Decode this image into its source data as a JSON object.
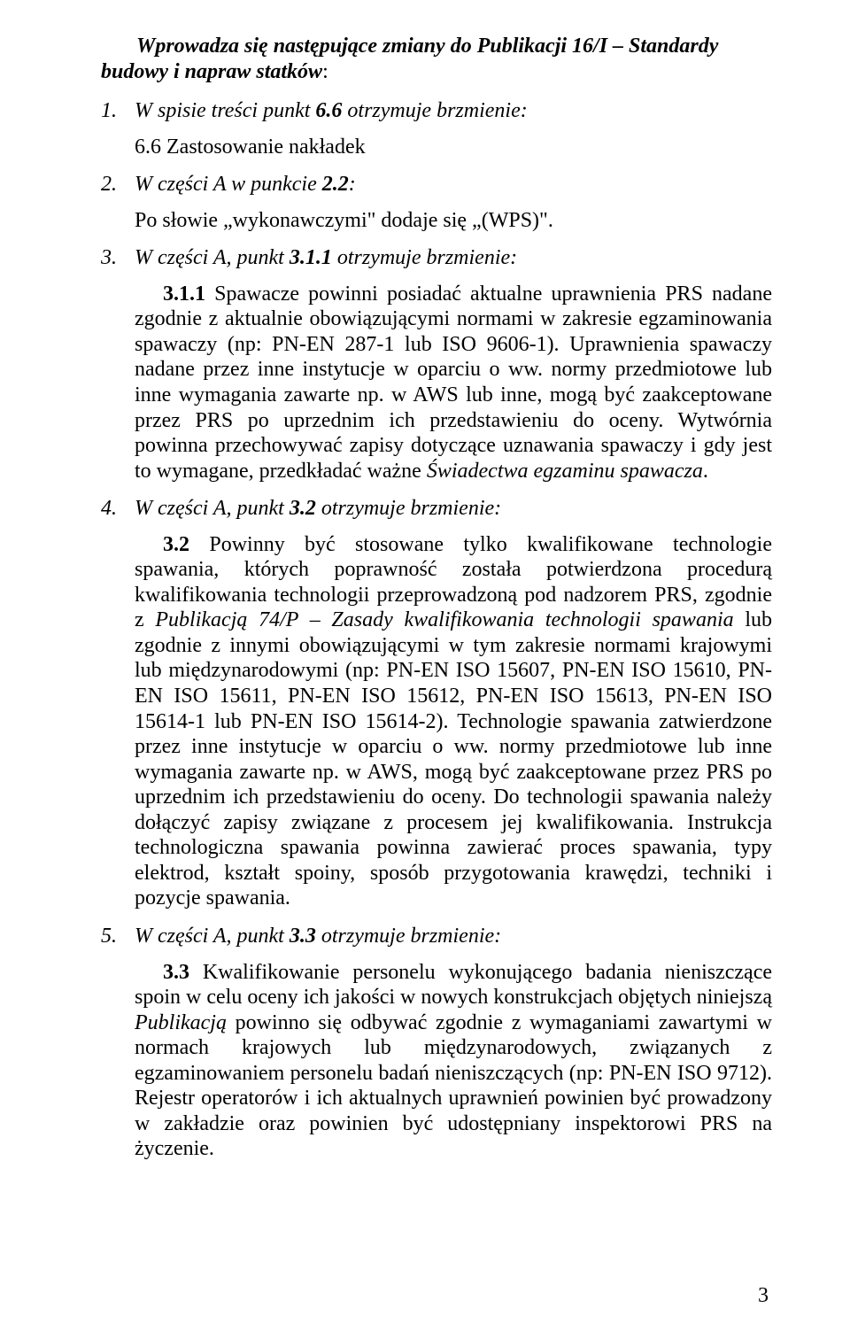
{
  "intro": {
    "lead_bold": "Wprowadza się następujące zmiany do ",
    "lead_italic": "Publikacji 16/I – Standardy budowy i napraw statków",
    "trailing": ":"
  },
  "items": [
    {
      "num": "1.",
      "head_plain": "W spisie treści punkt ",
      "head_bold": "6.6",
      "head_rest": " otrzymuje brzmienie:",
      "sub1": "6.6   Zastosowanie nakładek"
    },
    {
      "num": "2.",
      "head_plain": "W części A w punkcie ",
      "head_bold": "2.2",
      "head_rest": ":",
      "sub1": "Po słowie „wykonawczymi\" dodaje się „(WPS)\"."
    },
    {
      "num": "3.",
      "head_plain": "W części A, punkt ",
      "head_bold": "3.1.1",
      "head_rest": " otrzymuje brzmienie:",
      "body_num": "3.1.1",
      "body_text_1": "   Spawacze powinni posiadać aktualne uprawnienia PRS nadane zgodnie z aktualnie obowiązującymi normami w zakresie egzaminowania spawaczy (np: PN-EN 287-1 lub ISO 9606-1). Uprawnienia spawaczy nadane przez inne instytucje w oparciu o ww. normy przedmiotowe lub inne wymagania zawarte np. w AWS lub inne, mogą być zaakceptowane przez PRS po uprzednim ich przedstawieniu do oceny. Wytwórnia powinna przechowywać zapisy dotyczące uznawania spawaczy i gdy jest to wymagane, przedkładać ważne ",
      "body_ital_1": "Świadectwa egzaminu spawacza",
      "body_text_2": "."
    },
    {
      "num": "4.",
      "head_plain": "W części A, punkt ",
      "head_bold": "3.2",
      "head_rest": " otrzymuje brzmienie:",
      "body_num": "3.2",
      "body_text_1": "   Powinny być stosowane tylko kwalifikowane technologie spawania, których poprawność została potwierdzona procedurą kwalifikowania technologii przeprowadzoną pod nadzorem PRS, zgodnie z ",
      "body_ital_1": "Publikacją 74/P – Zasady kwalifikowania technologii spawania",
      "body_text_2": " lub zgodnie z innymi obowiązującymi w tym zakresie normami krajowymi lub międzynarodowymi (np: PN-EN ISO 15607, PN-EN ISO 15610, PN-EN ISO 15611, PN-EN ISO 15612, PN-EN ISO 15613, PN-EN ISO 15614-1 lub PN-EN ISO 15614-2). Technologie spawania zatwierdzone przez inne instytucje w oparciu o ww. normy przedmiotowe lub inne wymagania zawarte np. w AWS, mogą być zaakceptowane przez PRS po uprzednim ich przedstawieniu do oceny. Do technologii spawania należy dołączyć zapisy związane z procesem jej kwalifikowania. Instrukcja technologiczna spawania powinna zawierać proces spawania, typy elektrod, kształt spoiny, sposób przygotowania krawędzi, techniki i pozycje spawania."
    },
    {
      "num": "5.",
      "head_plain": "W części A, punkt ",
      "head_bold": "3.3",
      "head_rest": " otrzymuje brzmienie:",
      "body_num": "3.3",
      "body_text_1": "   Kwalifikowanie personelu wykonującego badania nieniszczące spoin w celu oceny ich jakości w nowych konstrukcjach objętych niniejszą ",
      "body_ital_1": "Publikacją",
      "body_text_2": " powinno się odbywać zgodnie z wymaganiami zawartymi w normach krajowych lub międzynarodowych, związanych z egzaminowaniem personelu badań nieniszczących (np: PN-EN ISO 9712). Rejestr operatorów i ich aktualnych uprawnień powinien być prowadzony w zakładzie oraz powinien być udostępniany inspektorowi PRS na życzenie."
    }
  ],
  "page_number": "3"
}
